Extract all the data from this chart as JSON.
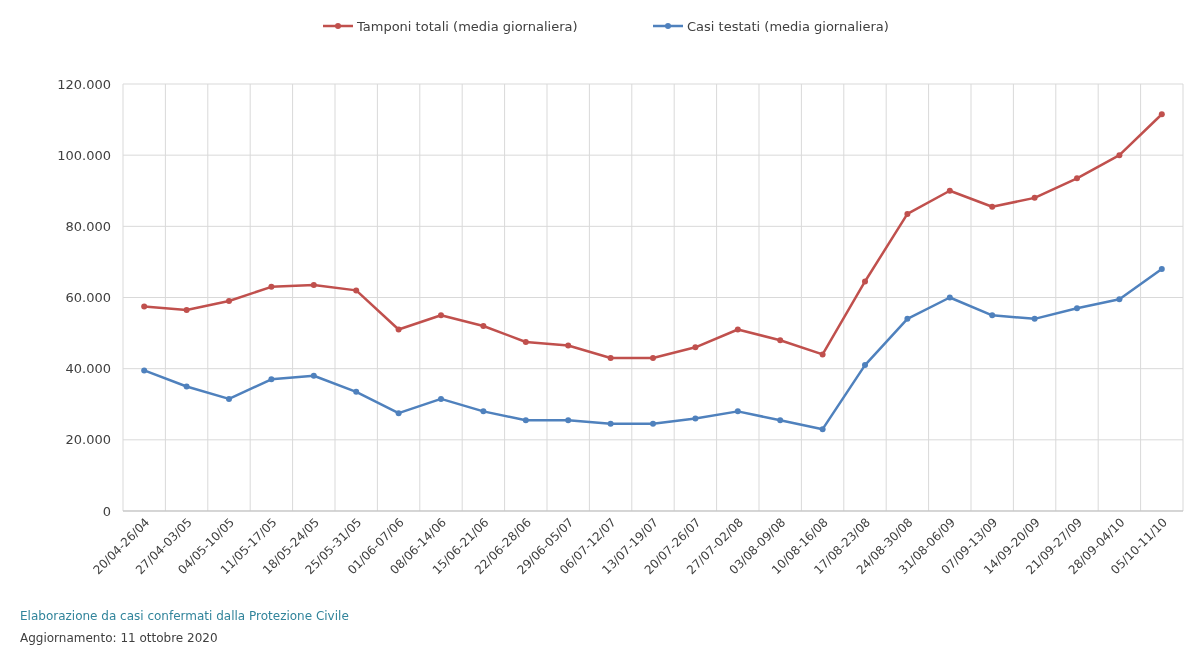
{
  "chart_data": {
    "type": "line",
    "categories": [
      "20/04-26/04",
      "27/04-03/05",
      "04/05-10/05",
      "11/05-17/05",
      "18/05-24/05",
      "25/05-31/05",
      "01/06-07/06",
      "08/06-14/06",
      "15/06-21/06",
      "22/06-28/06",
      "29/06-05/07",
      "06/07-12/07",
      "13/07-19/07",
      "20/07-26/07",
      "27/07-02/08",
      "03/08-09/08",
      "10/08-16/08",
      "17/08-23/08",
      "24/08-30/08",
      "31/08-06/09",
      "07/09-13/09",
      "14/09-20/09",
      "21/09-27/09",
      "28/09-04/10",
      "05/10-11/10"
    ],
    "series": [
      {
        "name": "Tamponi totali (media giornaliera)",
        "color": "#c0504d",
        "values": [
          57500,
          56500,
          59000,
          63000,
          63500,
          62000,
          51000,
          55000,
          52000,
          47500,
          46500,
          43000,
          43000,
          46000,
          51000,
          48000,
          44000,
          64500,
          83500,
          90000,
          85500,
          88000,
          93500,
          100000,
          111500
        ]
      },
      {
        "name": "Casi testati (media giornaliera)",
        "color": "#4f81bd",
        "values": [
          39500,
          35000,
          31500,
          37000,
          38000,
          33500,
          27500,
          31500,
          28000,
          25500,
          25500,
          24500,
          24500,
          26000,
          28000,
          25500,
          23000,
          41000,
          54000,
          60000,
          55000,
          54000,
          57000,
          59500,
          68000
        ]
      }
    ],
    "ylim": [
      0,
      120000
    ],
    "yticks": [
      0,
      {
        "value": 20000,
        "label": "20.000"
      },
      {
        "value": 40000,
        "label": "40.000"
      },
      {
        "value": 60000,
        "label": "60.000"
      },
      {
        "value": 80000,
        "label": "80.000"
      },
      {
        "value": 100000,
        "label": "100.000"
      },
      {
        "value": 120000,
        "label": "120.000"
      }
    ],
    "grid": true,
    "legend": "top",
    "marker": "circle",
    "line_style": "solid",
    "annotations": [
      "Elaborazione da casi confermati dalla Protezione Civile",
      "Aggiornamento:  11 ottobre 2020"
    ]
  }
}
